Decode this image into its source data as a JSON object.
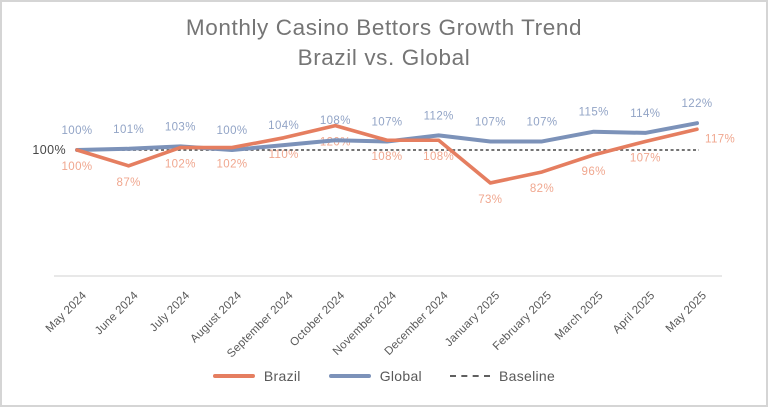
{
  "chart_data": {
    "type": "line",
    "title": "Monthly Casino Bettors Growth Trend",
    "subtitle": "Brazil vs. Global",
    "categories": [
      "May 2024",
      "June 2024",
      "July 2024",
      "August 2024",
      "September 2024",
      "October 2024",
      "November 2024",
      "December 2024",
      "January 2025",
      "February 2025",
      "March 2025",
      "April 2025",
      "May 2025"
    ],
    "series": [
      {
        "name": "Brazil",
        "color": "#E57E60",
        "label_color": "#F0A78F",
        "values": [
          100,
          87,
          102,
          102,
          110,
          120,
          108,
          108,
          73,
          82,
          96,
          107,
          117
        ]
      },
      {
        "name": "Global",
        "color": "#7C92B9",
        "label_color": "#92A4C6",
        "values": [
          100,
          101,
          103,
          100,
          104,
          108,
          107,
          112,
          107,
          107,
          115,
          114,
          122
        ]
      }
    ],
    "baseline": {
      "label": "Baseline",
      "value": 100,
      "axis_label": "100%",
      "color": "#606060"
    },
    "value_suffix": "%",
    "legend_position": "bottom",
    "grid": false,
    "y_axis_visible_ticks": [
      "100%"
    ],
    "x_labels_rotation_deg": -45,
    "colors": {
      "title_text": "#757575",
      "axis_text": "#595959",
      "axis_line": "#D9D9D9"
    }
  }
}
